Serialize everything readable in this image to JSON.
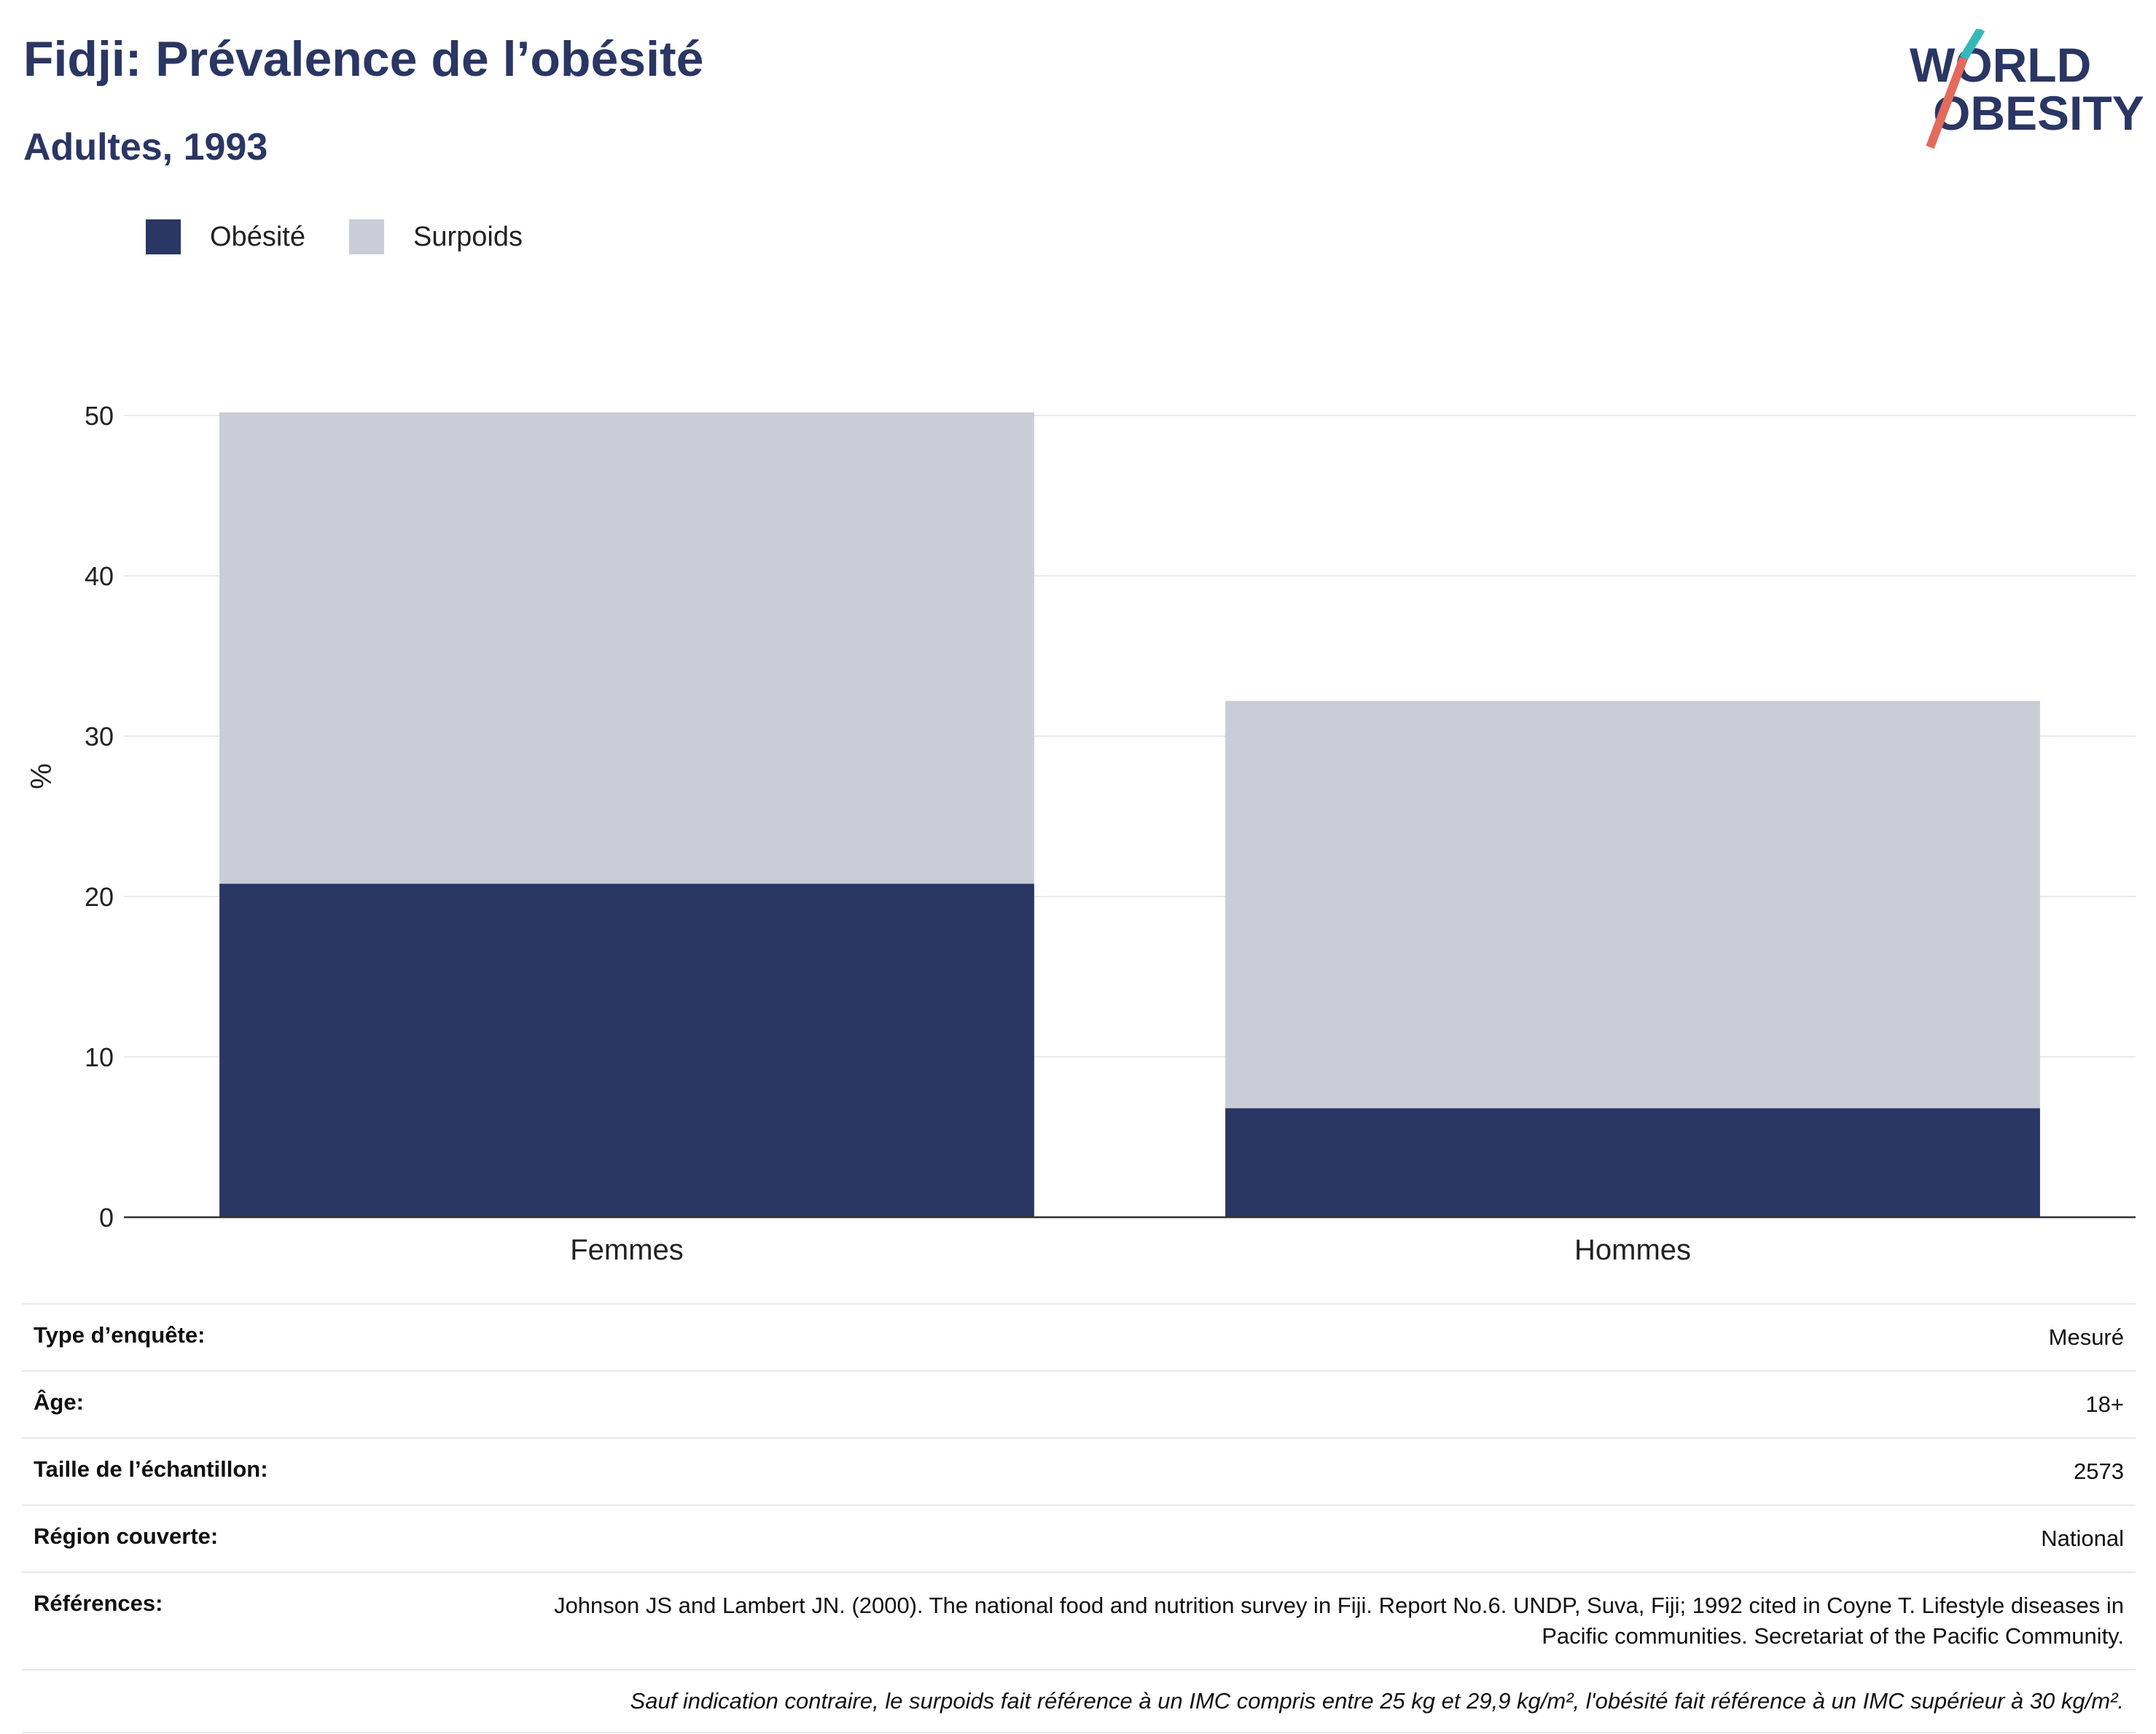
{
  "title": "Fidji: Prévalence de l’obésité",
  "subtitle": "Adultes, 1993",
  "logo": {
    "line1": "WORLD",
    "line2": "OBESITY"
  },
  "legend": [
    {
      "label": "Obésité",
      "color": "#2a3663"
    },
    {
      "label": "Surpoids",
      "color": "#cacdd8"
    }
  ],
  "chart_data": {
    "type": "bar",
    "stacked": true,
    "categories": [
      "Femmes",
      "Hommes"
    ],
    "series": [
      {
        "name": "Obésité",
        "values": [
          20.8,
          6.8
        ],
        "color": "#2a3663"
      },
      {
        "name": "Surpoids",
        "values": [
          29.4,
          25.4
        ],
        "color": "#cacdd8"
      }
    ],
    "ylabel": "%",
    "ylim": [
      0,
      55
    ],
    "yticks": [
      0,
      10,
      20,
      30,
      40,
      50
    ],
    "grid": true,
    "legend_position": "top-left"
  },
  "info": {
    "survey_type": {
      "label": "Type d’enquête:",
      "value": "Mesuré"
    },
    "age": {
      "label": "Âge:",
      "value": "18+"
    },
    "sample_size": {
      "label": "Taille de l’échantillon:",
      "value": "2573"
    },
    "region": {
      "label": "Région couverte:",
      "value": "National"
    },
    "references": {
      "label": "Références:",
      "value": "Johnson JS and Lambert JN. (2000). The national food and nutrition survey in Fiji. Report No.6. UNDP, Suva, Fiji; 1992 cited in Coyne T. Lifestyle diseases in Pacific communities. Secretariat of the Pacific Community."
    },
    "note": "Sauf indication contraire, le surpoids fait référence à un IMC compris entre 25 kg et 29,9 kg/m², l'obésité fait référence à un IMC supérieur à 30 kg/m²."
  }
}
